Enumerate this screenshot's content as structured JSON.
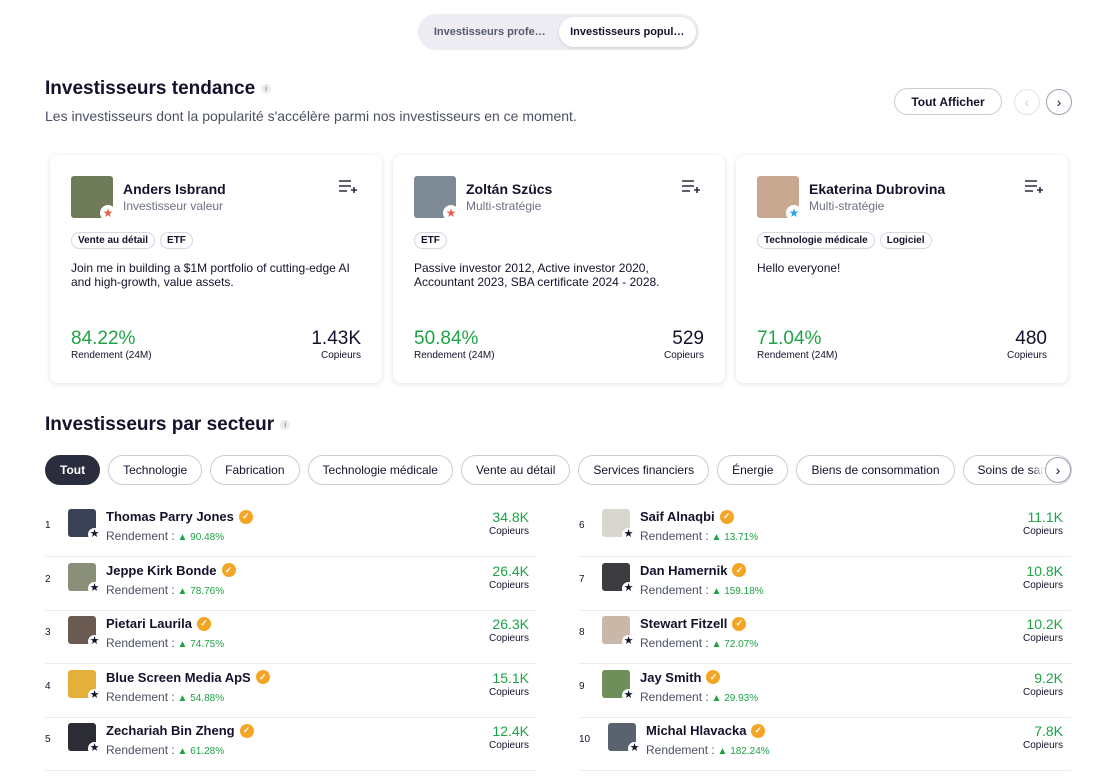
{
  "toggle": {
    "tabs": [
      {
        "label": "Investisseurs profe…",
        "active": false
      },
      {
        "label": "Investisseurs popul…",
        "active": true
      }
    ]
  },
  "trending": {
    "title": "Investisseurs tendance",
    "info": "i",
    "subtitle": "Les investisseurs dont la popularité s'accélère parmi nos investisseurs en ce moment.",
    "show_all": "Tout Afficher",
    "prev_icon": "‹",
    "next_icon": "›",
    "cards": [
      {
        "name": "Anders Isbrand",
        "style": "Investisseur valeur",
        "tags": [
          "Vente au détail",
          "ETF"
        ],
        "bio": "Join me in building a $1M portfolio of cutting-edge AI and high-growth, value assets.",
        "gain": "84.22%",
        "gain_label": "Rendement (24M)",
        "copiers": "1.43K",
        "copiers_label": "Copieurs",
        "star_color": "#e8604c",
        "avatar_color": "#6f7b58"
      },
      {
        "name": "Zoltán Szücs",
        "style": "Multi-stratégie",
        "tags": [
          "ETF"
        ],
        "bio": "Passive investor 2012, Active investor 2020, Accountant 2023, SBA certificate 2024 - 2028.",
        "gain": "50.84%",
        "gain_label": "Rendement (24M)",
        "copiers": "529",
        "copiers_label": "Copieurs",
        "star_color": "#e8604c",
        "avatar_color": "#7d8a96"
      },
      {
        "name": "Ekaterina Dubrovina",
        "style": "Multi-stratégie",
        "tags": [
          "Technologie médicale",
          "Logiciel"
        ],
        "bio": "Hello everyone!",
        "gain": "71.04%",
        "gain_label": "Rendement (24M)",
        "copiers": "480",
        "copiers_label": "Copieurs",
        "star_color": "#2aa6e8",
        "avatar_color": "#c9a892"
      }
    ]
  },
  "sector": {
    "title": "Investisseurs par secteur",
    "info": "i",
    "pills": [
      "Tout",
      "Technologie",
      "Fabrication",
      "Technologie médicale",
      "Vente au détail",
      "Services financiers",
      "Énergie",
      "Biens de consommation",
      "Soins de santé"
    ],
    "next_icon": "›",
    "return_label": "Rendement :",
    "copiers_label": "Copieurs",
    "investors": [
      {
        "rank": "1",
        "name": "Thomas Parry Jones",
        "return": "90.48%",
        "copiers": "34.8K",
        "avatar_color": "#3a4256"
      },
      {
        "rank": "2",
        "name": "Jeppe Kirk Bonde",
        "return": "78.76%",
        "copiers": "26.4K",
        "avatar_color": "#8a8f7a"
      },
      {
        "rank": "3",
        "name": "Pietari Laurila",
        "return": "74.75%",
        "copiers": "26.3K",
        "avatar_color": "#6b5a52"
      },
      {
        "rank": "4",
        "name": "Blue Screen Media ApS",
        "return": "54.88%",
        "copiers": "15.1K",
        "avatar_color": "#e4b03a"
      },
      {
        "rank": "5",
        "name": "Zechariah Bin Zheng",
        "return": "61.28%",
        "copiers": "12.4K",
        "avatar_color": "#2c2c34"
      },
      {
        "rank": "6",
        "name": "Saif Alnaqbi",
        "return": "13.71%",
        "copiers": "11.1K",
        "avatar_color": "#d9d6d0"
      },
      {
        "rank": "7",
        "name": "Dan Hamernik",
        "return": "159.18%",
        "copiers": "10.8K",
        "avatar_color": "#3b3b40"
      },
      {
        "rank": "8",
        "name": "Stewart Fitzell",
        "return": "72.07%",
        "copiers": "10.2K",
        "avatar_color": "#c9b8a8"
      },
      {
        "rank": "9",
        "name": "Jay Smith",
        "return": "29.93%",
        "copiers": "9.2K",
        "avatar_color": "#6e8f5a"
      },
      {
        "rank": "10",
        "name": "Michal Hlavacka",
        "return": "182.24%",
        "copiers": "7.8K",
        "avatar_color": "#5a6270"
      }
    ]
  }
}
